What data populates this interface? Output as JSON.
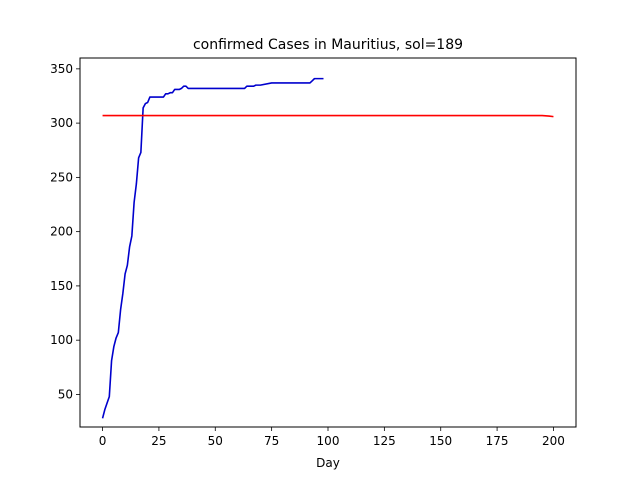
{
  "chart_data": {
    "type": "line",
    "title": "confirmed Cases in Mauritius, sol=189",
    "xlabel": "Day",
    "ylabel": "",
    "xlim": [
      -10,
      210
    ],
    "ylim": [
      20,
      360
    ],
    "xticks": [
      0,
      25,
      50,
      75,
      100,
      125,
      150,
      175,
      200
    ],
    "yticks": [
      50,
      100,
      150,
      200,
      250,
      300,
      350
    ],
    "grid": false,
    "series": [
      {
        "color": "#0000cd",
        "x": [
          0,
          1,
          2,
          3,
          4,
          5,
          6,
          7,
          8,
          9,
          10,
          11,
          12,
          13,
          14,
          15,
          16,
          17,
          18,
          19,
          20,
          21,
          22,
          23,
          24,
          25,
          26,
          27,
          28,
          29,
          30,
          31,
          32,
          33,
          34,
          35,
          36,
          37,
          38,
          40,
          45,
          50,
          55,
          60,
          63,
          64,
          65,
          66,
          67,
          68,
          70,
          75,
          80,
          85,
          90,
          92,
          93,
          94,
          95,
          96,
          97,
          98
        ],
        "y": [
          28,
          36,
          42,
          48,
          81,
          94,
          102,
          107,
          128,
          143,
          161,
          169,
          186,
          196,
          227,
          244,
          268,
          273,
          314,
          318,
          319,
          324,
          324,
          324,
          324,
          324,
          324,
          324,
          327,
          327,
          328,
          328,
          331,
          331,
          331,
          332,
          334,
          334,
          332,
          332,
          332,
          332,
          332,
          332,
          332,
          334,
          334,
          334,
          334,
          335,
          335,
          337,
          337,
          337,
          337,
          337,
          339,
          341,
          341,
          341,
          341,
          341
        ]
      },
      {
        "color": "#ff0000",
        "x": [
          0,
          25,
          50,
          75,
          100,
          125,
          150,
          175,
          185,
          190,
          195,
          198,
          200
        ],
        "y": [
          307,
          307,
          307,
          307,
          307,
          307,
          307,
          307,
          307,
          307,
          307,
          306.5,
          306
        ]
      }
    ]
  }
}
